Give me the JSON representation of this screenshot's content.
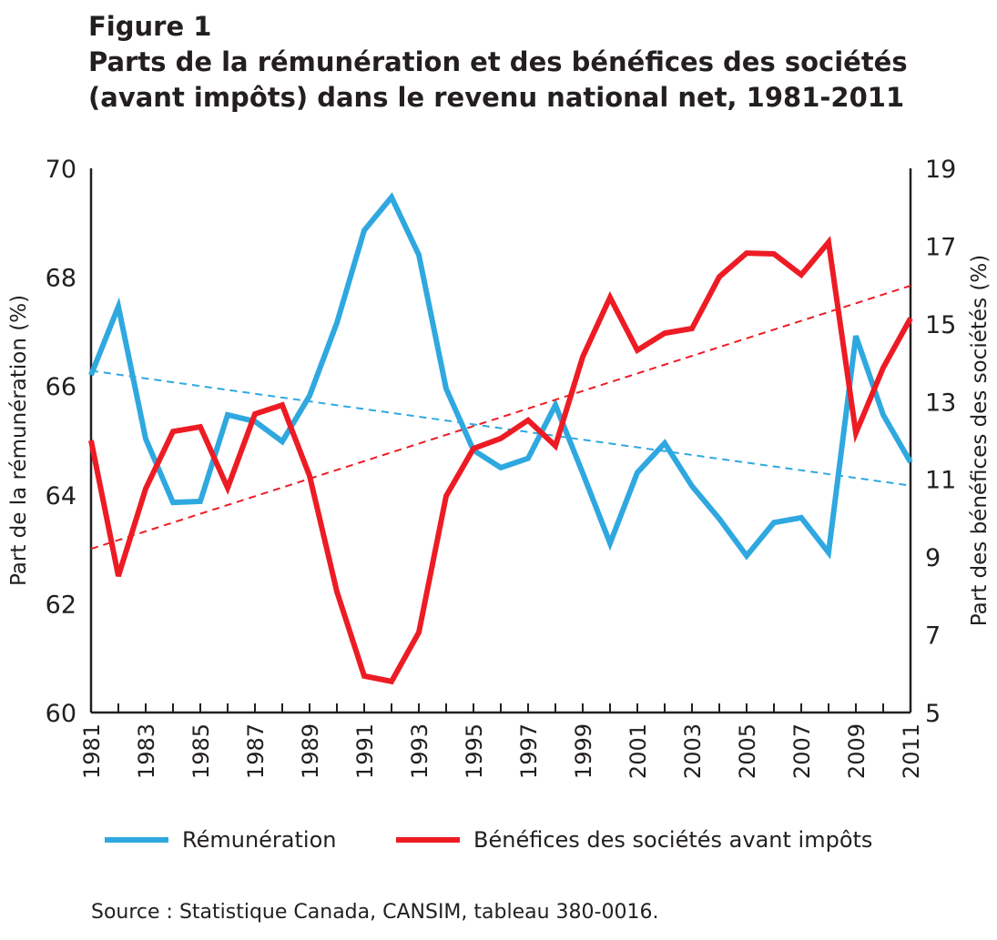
{
  "figure_label": "Figure 1",
  "chart_data": {
    "type": "line",
    "title": "Parts de la rémunération et des bénéfices des sociétés (avant impôts) dans le revenu national net, 1981-2011",
    "title_lines": [
      "Parts de la rémunération et des bénéfices des sociétés",
      "(avant impôts) dans le revenu national net, 1981-2011"
    ],
    "ylabel": "Part de la rémunération (%)",
    "y2label": "Part des bénéfices des sociétés (%)",
    "xlim": [
      1981,
      2011
    ],
    "ylim": [
      60,
      70
    ],
    "y2lim": [
      5,
      19
    ],
    "yticks": [
      "60",
      "62",
      "64",
      "66",
      "68",
      "70"
    ],
    "y2ticks": [
      "5",
      "7",
      "9",
      "11",
      "13",
      "15",
      "17",
      "19"
    ],
    "xticks": [
      "1981",
      "1983",
      "1985",
      "1987",
      "1989",
      "1991",
      "1993",
      "1995",
      "1997",
      "1999",
      "2001",
      "2003",
      "2005",
      "2007",
      "2009",
      "2011"
    ],
    "x": [
      1981,
      1982,
      1983,
      1984,
      1985,
      1986,
      1987,
      1988,
      1989,
      1990,
      1991,
      1992,
      1993,
      1994,
      1995,
      1996,
      1997,
      1998,
      1999,
      2000,
      2001,
      2002,
      2003,
      2004,
      2005,
      2006,
      2007,
      2008,
      2009,
      2010,
      2011
    ],
    "series": [
      {
        "name": "Rémunération",
        "axis": "left",
        "color": "#2fa8e0",
        "values": [
          66.2,
          67.46,
          65.03,
          63.86,
          63.88,
          65.47,
          65.35,
          64.98,
          65.82,
          67.16,
          68.86,
          69.47,
          68.41,
          65.95,
          64.82,
          64.5,
          64.67,
          65.65,
          64.4,
          63.11,
          64.41,
          64.95,
          64.16,
          63.56,
          62.88,
          63.49,
          63.58,
          62.94,
          66.92,
          65.47,
          64.6
        ],
        "trend": [
          66.28,
          64.17
        ]
      },
      {
        "name": "Bénéfices des sociétés avant impôts",
        "axis": "right",
        "color": "#ed1c24",
        "values": [
          12.0,
          8.51,
          10.76,
          12.23,
          12.35,
          10.78,
          12.68,
          12.91,
          11.09,
          8.11,
          5.94,
          5.8,
          7.06,
          10.57,
          11.79,
          12.05,
          12.52,
          11.86,
          14.15,
          15.68,
          14.32,
          14.76,
          14.88,
          16.21,
          16.82,
          16.8,
          16.26,
          17.1,
          12.19,
          13.87,
          15.14
        ],
        "trend": [
          9.21,
          15.98
        ]
      }
    ],
    "legend_placement": "bottom",
    "grid": false
  },
  "source": "Source : Statistique Canada, CANSIM, tableau 380-0016."
}
